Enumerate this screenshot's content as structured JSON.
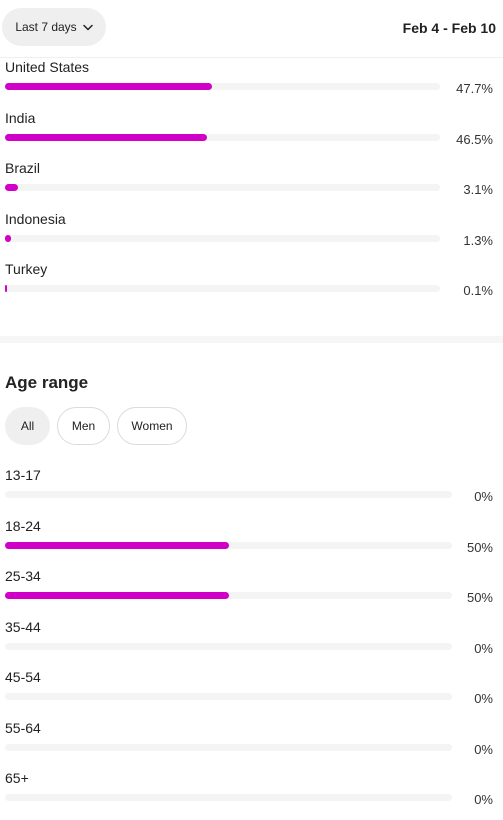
{
  "header": {
    "range_label": "Last 7 days",
    "date_range": "Feb 4 - Feb 10"
  },
  "countries": [
    {
      "label": "United States",
      "pct": "47.7%",
      "value": 47.7
    },
    {
      "label": "India",
      "pct": "46.5%",
      "value": 46.5
    },
    {
      "label": "Brazil",
      "pct": "3.1%",
      "value": 3.1
    },
    {
      "label": "Indonesia",
      "pct": "1.3%",
      "value": 1.3
    },
    {
      "label": "Turkey",
      "pct": "0.1%",
      "value": 0.1
    }
  ],
  "age": {
    "title": "Age range",
    "filters": [
      "All",
      "Men",
      "Women"
    ],
    "active_filter": "All",
    "rows": [
      {
        "label": "13-17",
        "pct": "0%",
        "value": 0
      },
      {
        "label": "18-24",
        "pct": "50%",
        "value": 50
      },
      {
        "label": "25-34",
        "pct": "50%",
        "value": 50
      },
      {
        "label": "35-44",
        "pct": "0%",
        "value": 0
      },
      {
        "label": "45-54",
        "pct": "0%",
        "value": 0
      },
      {
        "label": "55-64",
        "pct": "0%",
        "value": 0
      },
      {
        "label": "65+",
        "pct": "0%",
        "value": 0
      }
    ]
  },
  "colors": {
    "bar_fill": "#d100c6",
    "track": "#f4f4f4"
  }
}
